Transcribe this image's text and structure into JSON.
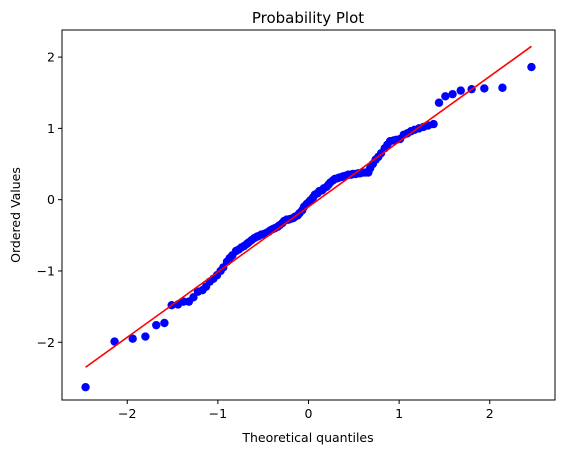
{
  "chart_data": {
    "type": "scatter",
    "title": "Probability Plot",
    "xlabel": "Theoretical quantiles",
    "ylabel": "Ordered Values",
    "xlim": [
      -2.72,
      2.72
    ],
    "ylim": [
      -2.81,
      2.38
    ],
    "xticks": [
      -2,
      -1,
      0,
      1,
      2
    ],
    "yticks": [
      -2,
      -1,
      0,
      1,
      2
    ],
    "grid": false,
    "colors": {
      "points": "#0000ff",
      "fit_line": "#ff0000",
      "axes": "#000000"
    },
    "fit_line": {
      "slope": 0.915,
      "intercept": -0.1,
      "x_range": [
        -2.46,
        2.46
      ]
    },
    "series": [
      {
        "type": "scatter",
        "points": [
          [
            -2.46,
            -2.63
          ],
          [
            -2.14,
            -1.99
          ],
          [
            -1.94,
            -1.95
          ],
          [
            -1.8,
            -1.92
          ],
          [
            -1.68,
            -1.76
          ],
          [
            -1.59,
            -1.73
          ],
          [
            -1.51,
            -1.48
          ],
          [
            -1.44,
            -1.47
          ],
          [
            -1.38,
            -1.43
          ],
          [
            -1.32,
            -1.43
          ],
          [
            -1.27,
            -1.37
          ],
          [
            -1.22,
            -1.29
          ],
          [
            -1.17,
            -1.27
          ],
          [
            -1.13,
            -1.22
          ],
          [
            -1.09,
            -1.15
          ],
          [
            -1.05,
            -1.11
          ],
          [
            -1.01,
            -1.06
          ],
          [
            -0.97,
            -1.0
          ],
          [
            -0.94,
            -0.95
          ],
          [
            -0.9,
            -0.87
          ],
          [
            -0.87,
            -0.82
          ],
          [
            -0.84,
            -0.78
          ],
          [
            -0.8,
            -0.72
          ],
          [
            -0.77,
            -0.7
          ],
          [
            -0.74,
            -0.67
          ],
          [
            -0.71,
            -0.65
          ],
          [
            -0.68,
            -0.62
          ],
          [
            -0.66,
            -0.6
          ],
          [
            -0.63,
            -0.57
          ],
          [
            -0.6,
            -0.54
          ],
          [
            -0.57,
            -0.52
          ],
          [
            -0.55,
            -0.51
          ],
          [
            -0.52,
            -0.49
          ],
          [
            -0.49,
            -0.48
          ],
          [
            -0.47,
            -0.47
          ],
          [
            -0.44,
            -0.45
          ],
          [
            -0.42,
            -0.43
          ],
          [
            -0.39,
            -0.41
          ],
          [
            -0.37,
            -0.4
          ],
          [
            -0.34,
            -0.38
          ],
          [
            -0.32,
            -0.36
          ],
          [
            -0.29,
            -0.33
          ],
          [
            -0.27,
            -0.3
          ],
          [
            -0.24,
            -0.28
          ],
          [
            -0.22,
            -0.28
          ],
          [
            -0.2,
            -0.27
          ],
          [
            -0.17,
            -0.26
          ],
          [
            -0.15,
            -0.24
          ],
          [
            -0.12,
            -0.22
          ],
          [
            -0.1,
            -0.19
          ],
          [
            -0.07,
            -0.15
          ],
          [
            -0.05,
            -0.1
          ],
          [
            -0.02,
            -0.06
          ],
          [
            0.0,
            -0.04
          ],
          [
            0.02,
            -0.01
          ],
          [
            0.05,
            0.03
          ],
          [
            0.07,
            0.07
          ],
          [
            0.1,
            0.09
          ],
          [
            0.12,
            0.12
          ],
          [
            0.15,
            0.13
          ],
          [
            0.17,
            0.16
          ],
          [
            0.2,
            0.18
          ],
          [
            0.22,
            0.21
          ],
          [
            0.24,
            0.24
          ],
          [
            0.27,
            0.27
          ],
          [
            0.29,
            0.29
          ],
          [
            0.32,
            0.3
          ],
          [
            0.34,
            0.31
          ],
          [
            0.37,
            0.32
          ],
          [
            0.39,
            0.33
          ],
          [
            0.42,
            0.34
          ],
          [
            0.44,
            0.35
          ],
          [
            0.47,
            0.35
          ],
          [
            0.49,
            0.36
          ],
          [
            0.52,
            0.36
          ],
          [
            0.55,
            0.37
          ],
          [
            0.57,
            0.37
          ],
          [
            0.6,
            0.38
          ],
          [
            0.63,
            0.38
          ],
          [
            0.66,
            0.38
          ],
          [
            0.68,
            0.44
          ],
          [
            0.71,
            0.5
          ],
          [
            0.74,
            0.56
          ],
          [
            0.77,
            0.6
          ],
          [
            0.8,
            0.65
          ],
          [
            0.84,
            0.72
          ],
          [
            0.87,
            0.77
          ],
          [
            0.9,
            0.82
          ],
          [
            0.94,
            0.83
          ],
          [
            0.97,
            0.84
          ],
          [
            1.01,
            0.85
          ],
          [
            1.05,
            0.91
          ],
          [
            1.09,
            0.93
          ],
          [
            1.13,
            0.96
          ],
          [
            1.17,
            0.98
          ],
          [
            1.22,
            1.0
          ],
          [
            1.27,
            1.02
          ],
          [
            1.32,
            1.04
          ],
          [
            1.38,
            1.06
          ],
          [
            1.44,
            1.36
          ],
          [
            1.51,
            1.45
          ],
          [
            1.59,
            1.48
          ],
          [
            1.68,
            1.53
          ],
          [
            1.8,
            1.55
          ],
          [
            1.94,
            1.56
          ],
          [
            2.14,
            1.57
          ],
          [
            2.46,
            1.86
          ]
        ]
      }
    ]
  }
}
